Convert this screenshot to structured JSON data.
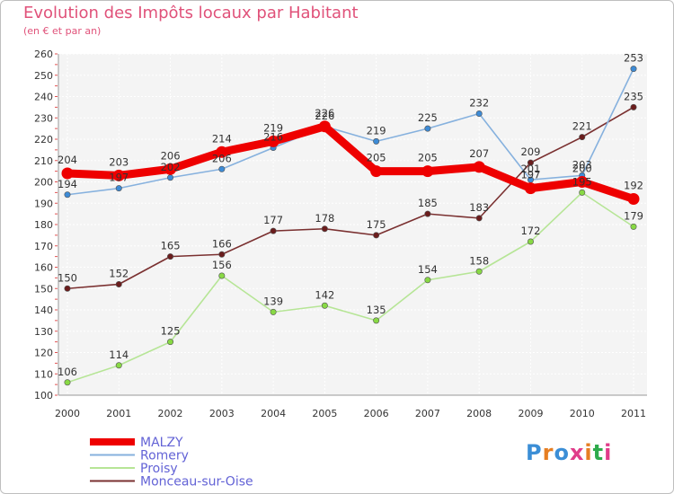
{
  "title": "Evolution des Impôts locaux par Habitant",
  "subtitle": "(en € et par an)",
  "logo": {
    "text": "Proxiti",
    "letter_colors": [
      "#3b8ed6",
      "#e67e22",
      "#3b8ed6",
      "#e03c8a",
      "#e67e22",
      "#2eab4b",
      "#e03c8a"
    ]
  },
  "chart_data": {
    "type": "line",
    "title": "Evolution des Impôts locaux par Habitant",
    "subtitle": "(en € et par an)",
    "xlabel": "",
    "ylabel": "",
    "x": [
      "2000",
      "2001",
      "2002",
      "2003",
      "2004",
      "2005",
      "2006",
      "2007",
      "2008",
      "2009",
      "2010",
      "2011"
    ],
    "ylim": [
      100,
      260
    ],
    "yticks": [
      100,
      110,
      120,
      130,
      140,
      150,
      160,
      170,
      180,
      190,
      200,
      210,
      220,
      230,
      240,
      250,
      260
    ],
    "grid": true,
    "legend_position": "bottom-left",
    "series": [
      {
        "name": "MALZY",
        "color": "#ee0000",
        "line_color": "#ee0000",
        "emphasis": true,
        "values": [
          204,
          203,
          206,
          214,
          219,
          226,
          205,
          205,
          207,
          197,
          200,
          192
        ],
        "labels": [
          "204",
          "203",
          "206",
          "214",
          "219",
          "226",
          "205",
          "205",
          "207",
          "197",
          "200",
          "192"
        ]
      },
      {
        "name": "Romery",
        "color": "#3d8bd6",
        "line_color": "#86b1de",
        "emphasis": false,
        "values": [
          194,
          197,
          202,
          206,
          216,
          226,
          219,
          225,
          232,
          201,
          203,
          253
        ],
        "labels": [
          "194",
          "197",
          "202",
          "206",
          "216",
          "226",
          "219",
          "225",
          "232",
          "201",
          "203",
          "253"
        ]
      },
      {
        "name": "Proisy",
        "color": "#88d944",
        "line_color": "#b6e596",
        "emphasis": false,
        "values": [
          106,
          114,
          125,
          156,
          139,
          142,
          135,
          154,
          158,
          172,
          195,
          179
        ],
        "labels": [
          "106",
          "114",
          "125",
          "156",
          "139",
          "142",
          "135",
          "154",
          "158",
          "172",
          "195",
          "179"
        ]
      },
      {
        "name": "Monceau-sur-Oise",
        "color": "#6b1d1d",
        "line_color": "#7a3030",
        "emphasis": false,
        "values": [
          150,
          152,
          165,
          166,
          177,
          178,
          175,
          185,
          183,
          209,
          221,
          235
        ],
        "labels": [
          "150",
          "152",
          "165",
          "166",
          "177",
          "178",
          "175",
          "185",
          "183",
          "209",
          "221",
          "235"
        ]
      }
    ]
  }
}
